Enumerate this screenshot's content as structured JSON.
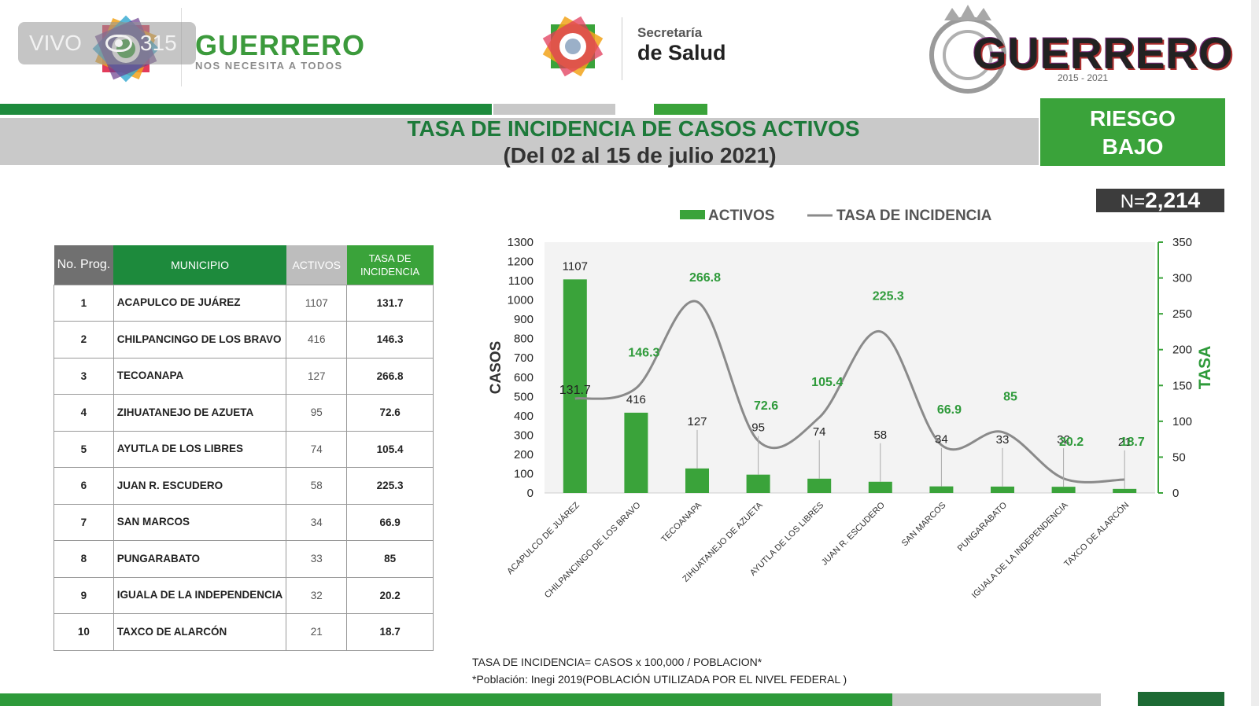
{
  "live": {
    "label": "VIVO",
    "viewers": "315"
  },
  "header": {
    "brand_left": "GUERRERO",
    "brand_left_tagline": "NOS NECESITA A TODOS",
    "secretaria_line1": "Secretaría",
    "secretaria_line2": "de Salud",
    "brand_right": "GUERRERO",
    "brand_right_years": "2015 - 2021"
  },
  "title": {
    "line1": "TASA DE INCIDENCIA DE CASOS ACTIVOS",
    "line2": "(Del 02 al 15 de julio 2021)"
  },
  "riesgo": {
    "line1": "RIESGO",
    "line2": "BAJO"
  },
  "total": {
    "prefix": "N=",
    "value": "2,214"
  },
  "table": {
    "headers": {
      "no": "No. Prog.",
      "municipio": "MUNICIPIO",
      "activos": "ACTIVOS",
      "tasa_line1": "TASA DE",
      "tasa_line2": "INCIDENCIA"
    },
    "rows": [
      {
        "no": "1",
        "municipio": "ACAPULCO DE JUÁREZ",
        "activos": "1107",
        "tasa": "131.7"
      },
      {
        "no": "2",
        "municipio": "CHILPANCINGO DE LOS BRAVO",
        "activos": "416",
        "tasa": "146.3"
      },
      {
        "no": "3",
        "municipio": "TECOANAPA",
        "activos": "127",
        "tasa": "266.8"
      },
      {
        "no": "4",
        "municipio": "ZIHUATANEJO DE AZUETA",
        "activos": "95",
        "tasa": "72.6"
      },
      {
        "no": "5",
        "municipio": "AYUTLA DE LOS LIBRES",
        "activos": "74",
        "tasa": "105.4"
      },
      {
        "no": "6",
        "municipio": "JUAN R. ESCUDERO",
        "activos": "58",
        "tasa": "225.3"
      },
      {
        "no": "7",
        "municipio": "SAN MARCOS",
        "activos": "34",
        "tasa": "66.9"
      },
      {
        "no": "8",
        "municipio": "PUNGARABATO",
        "activos": "33",
        "tasa": "85"
      },
      {
        "no": "9",
        "municipio": "IGUALA DE LA INDEPENDENCIA",
        "activos": "32",
        "tasa": "20.2"
      },
      {
        "no": "10",
        "municipio": "TAXCO DE ALARCÓN",
        "activos": "21",
        "tasa": "18.7"
      }
    ]
  },
  "chart_data": {
    "type": "bar",
    "categories": [
      "ACAPULCO DE JUÁREZ",
      "CHILPANCINGO DE LOS BRAVO",
      "TECOANAPA",
      "ZIHUATANEJO DE AZUETA",
      "AYUTLA DE LOS LIBRES",
      "JUAN R. ESCUDERO",
      "SAN MARCOS",
      "PUNGARABATO",
      "IGUALA DE LA INDEPENDENCIA",
      "TAXCO DE ALARCÓN"
    ],
    "series": [
      {
        "name": "ACTIVOS",
        "type": "bar",
        "axis": "left",
        "color": "#3aa33a",
        "values": [
          1107,
          416,
          127,
          95,
          74,
          58,
          34,
          33,
          32,
          21
        ]
      },
      {
        "name": "TASA DE INCIDENCIA",
        "type": "line",
        "axis": "right",
        "color": "#8a8a8a",
        "values": [
          131.7,
          146.3,
          266.8,
          72.6,
          105.4,
          225.3,
          66.9,
          85,
          20.2,
          18.7
        ]
      }
    ],
    "ylabel": "CASOS",
    "y2label": "TASA",
    "ylim": [
      0,
      1300
    ],
    "y2lim": [
      0,
      350
    ],
    "yticks": [
      0,
      100,
      200,
      300,
      400,
      500,
      600,
      700,
      800,
      900,
      1000,
      1100,
      1200,
      1300
    ],
    "y2ticks": [
      0,
      50,
      100,
      150,
      200,
      250,
      300,
      350
    ],
    "legend": "top",
    "tasa_label_color": "#2e9a3a"
  },
  "footnotes": {
    "line1": "TASA DE INCIDENCIA= CASOS x 100,000 / POBLACION*",
    "line2": "*Población: Inegi 2019(POBLACIÓN UTILIZADA POR EL NIVEL FEDERAL )"
  }
}
